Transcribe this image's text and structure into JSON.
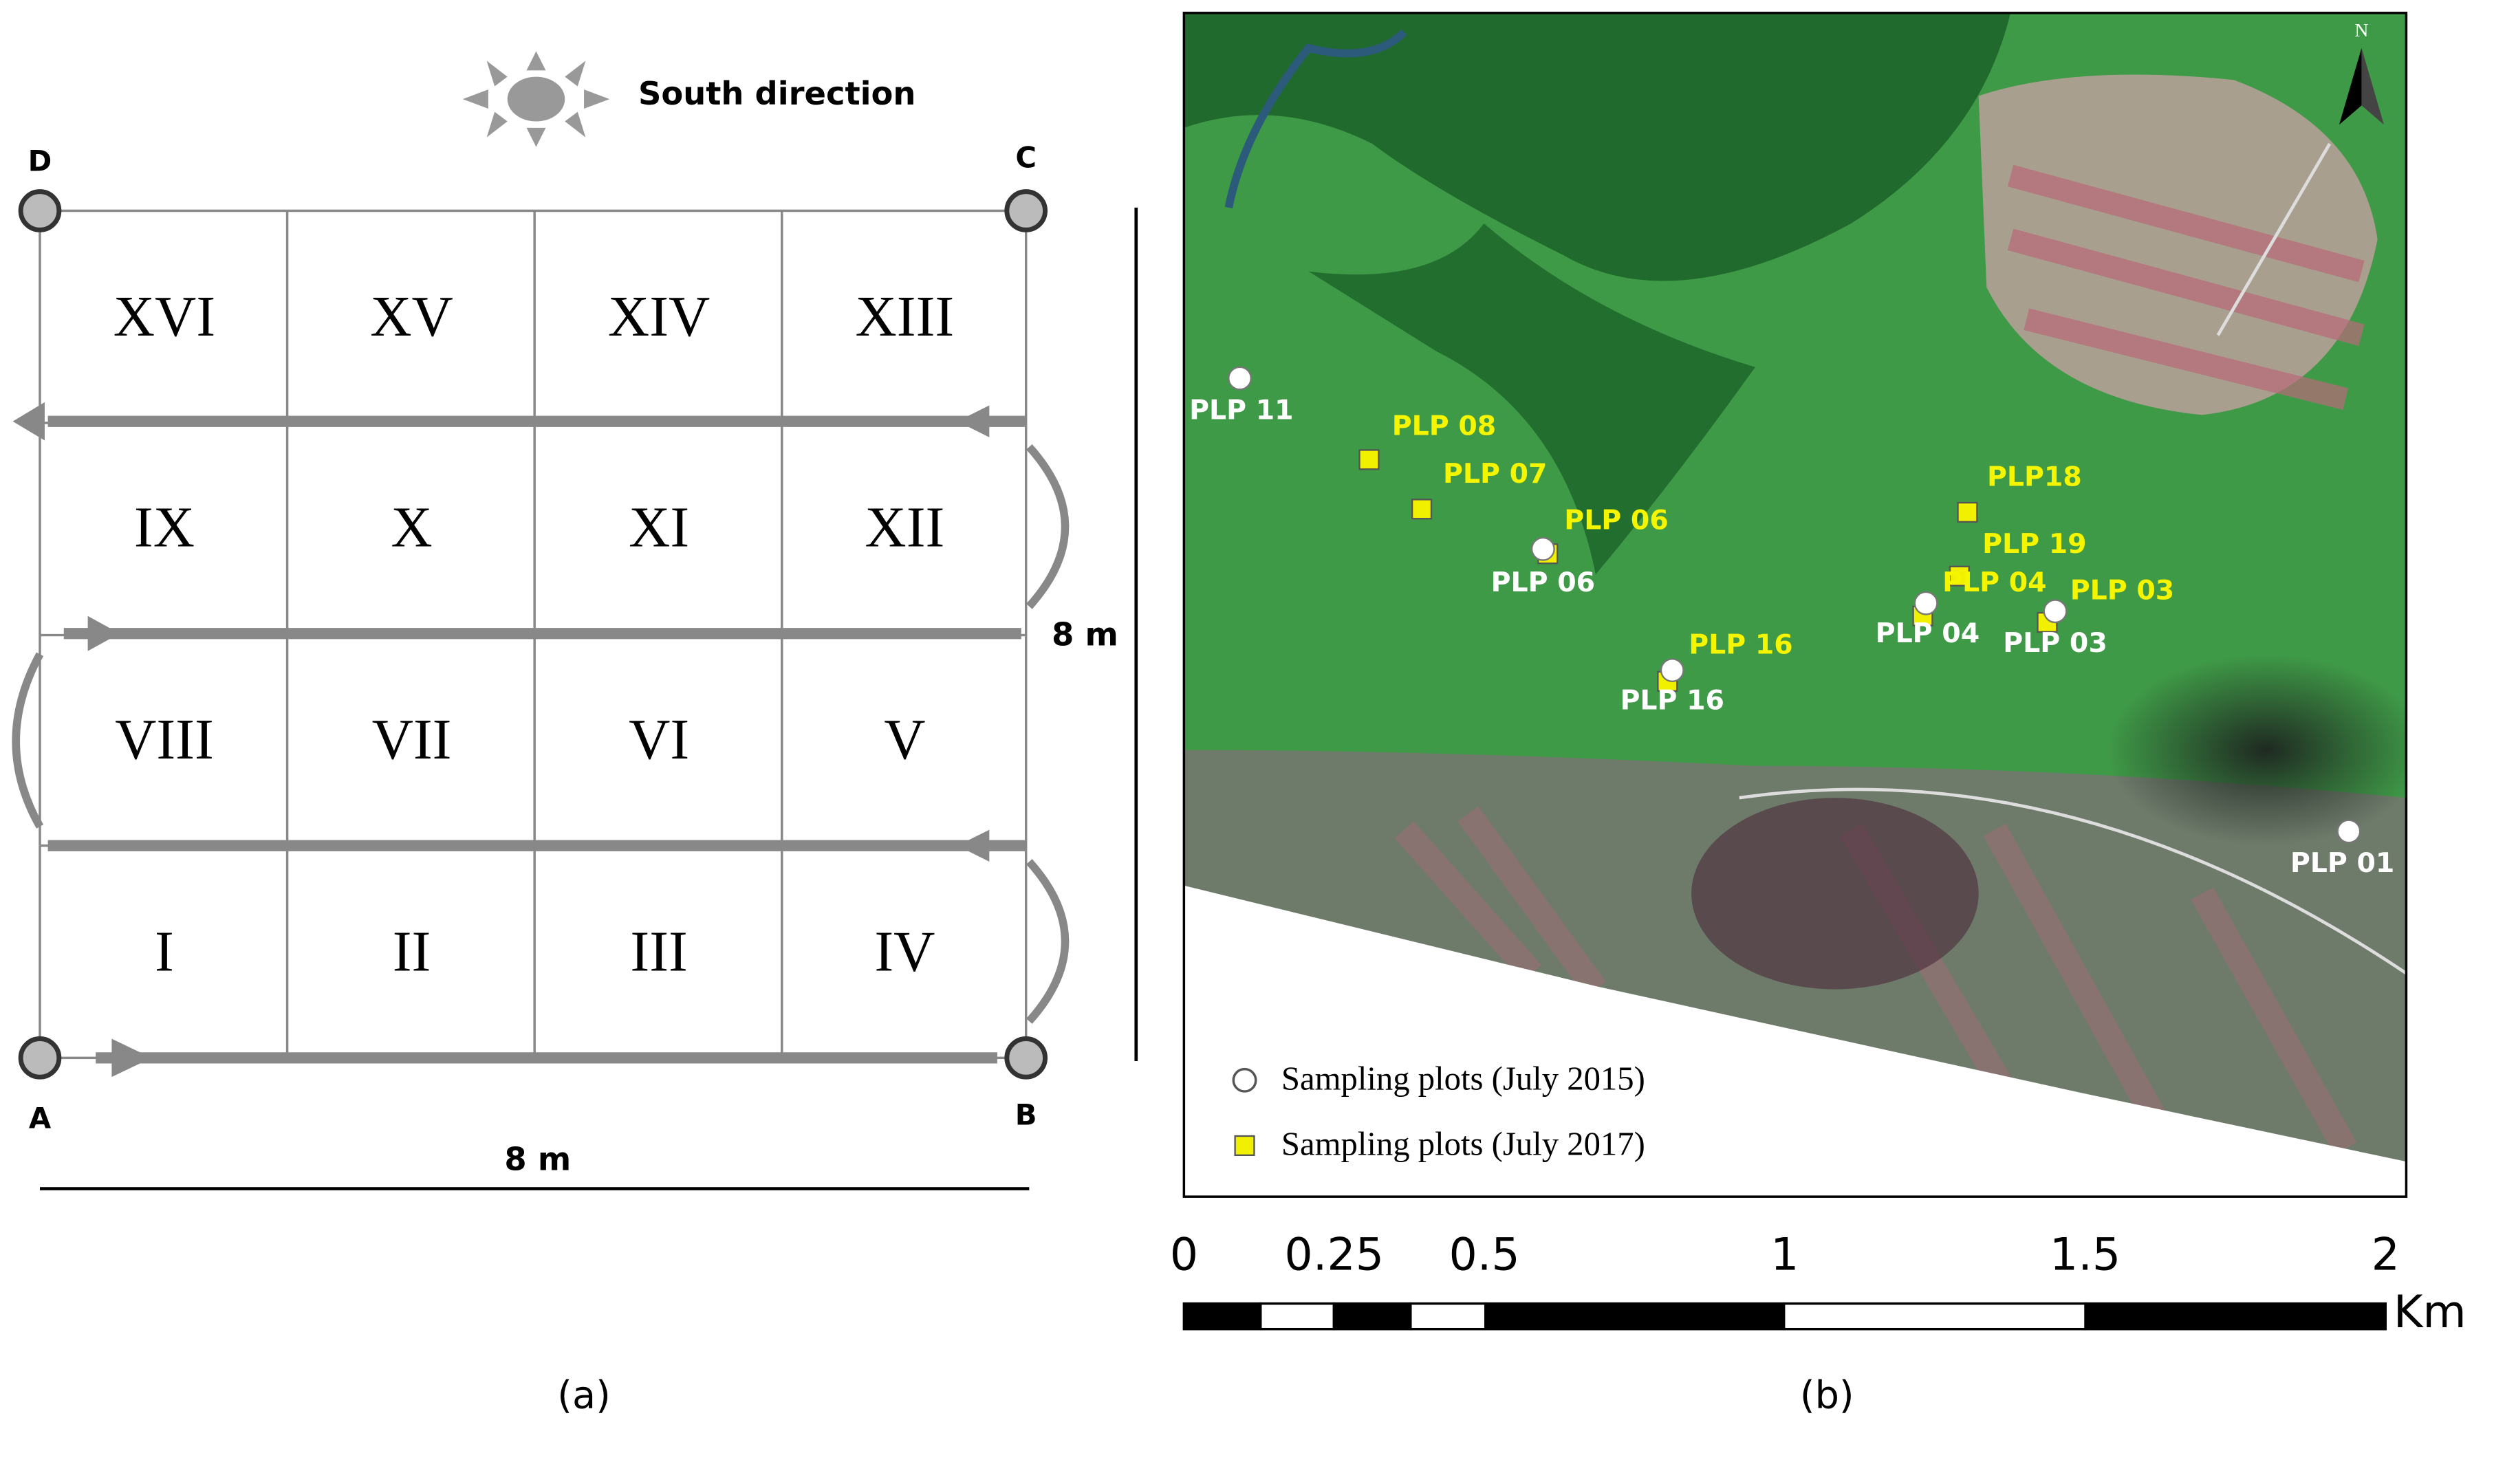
{
  "panel_a": {
    "sun_label": "South direction",
    "corners": [
      "D",
      "C",
      "A",
      "B"
    ],
    "cells": [
      "XVI",
      "XV",
      "XIV",
      "XIII",
      "IX",
      "X",
      "XI",
      "XII",
      "VIII",
      "VII",
      "VI",
      "V",
      "I",
      "II",
      "III",
      "IV"
    ],
    "side_label": "8 m",
    "bottom_label": "8 m",
    "caption": "(a)"
  },
  "panel_b": {
    "north": "N",
    "plots_2015": [
      "PLP 11",
      "PLP 06",
      "PLP 16",
      "PLP 04",
      "PLP 03",
      "PLP 01"
    ],
    "plots_2017": [
      "PLP 08",
      "PLP 07",
      "PLP 06",
      "PLP 16",
      "PLP18",
      "PLP 19",
      "PLP 04",
      "PLP 03"
    ],
    "legend": [
      "Sampling plots (July 2015)",
      "Sampling plots (July 2017)"
    ],
    "scale_ticks": [
      0,
      0.25,
      0.5,
      1,
      1.5,
      2
    ],
    "scale_unit": "Km",
    "caption": "(b)"
  }
}
